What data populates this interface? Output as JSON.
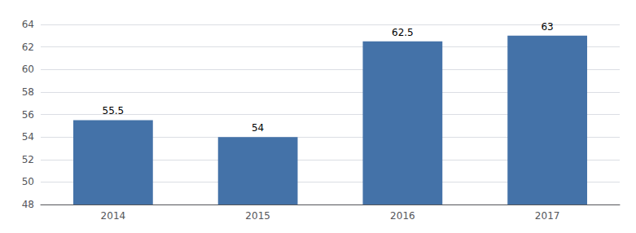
{
  "chart_data": {
    "type": "bar",
    "categories": [
      "2014",
      "2015",
      "2016",
      "2017"
    ],
    "values": [
      55.5,
      54,
      62.5,
      63
    ],
    "color": "#4472a8",
    "ylim": [
      48,
      64
    ],
    "yticks": [
      48,
      50,
      52,
      54,
      56,
      58,
      60,
      62,
      64
    ],
    "grid": true,
    "data_labels": true
  }
}
